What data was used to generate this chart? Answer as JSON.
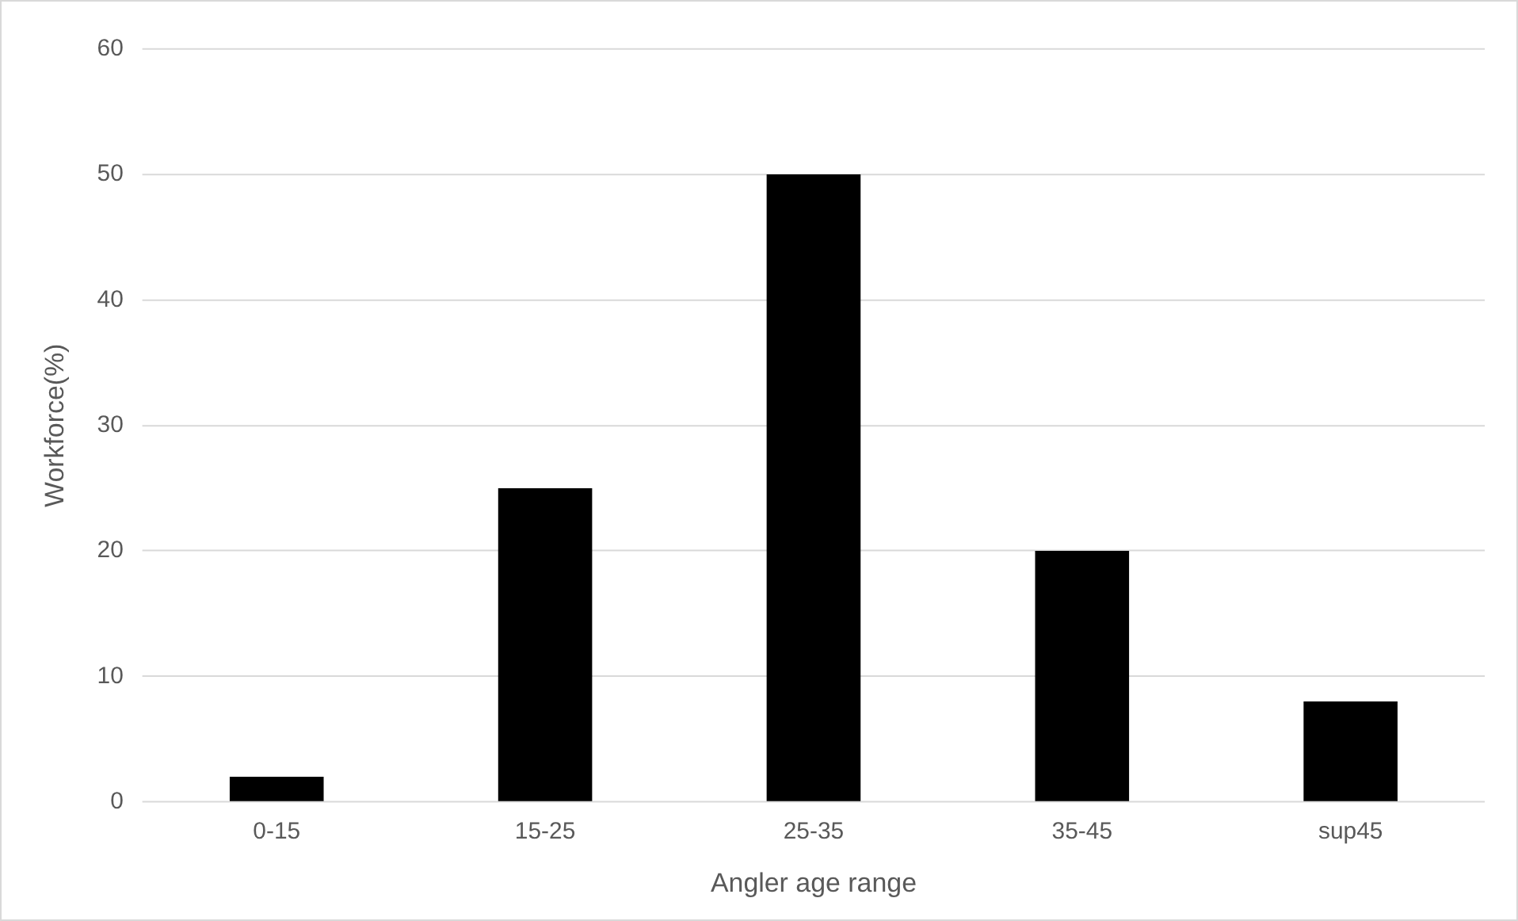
{
  "chart_data": {
    "type": "bar",
    "xlabel": "Angler age range",
    "ylabel": "Workforce(%)",
    "categories": [
      "0-15",
      "15-25",
      "25-35",
      "35-45",
      "sup45"
    ],
    "values": [
      2,
      25,
      50,
      20,
      8
    ],
    "color": "#000000",
    "ylim": [
      0,
      60
    ],
    "yticks": [
      0,
      10,
      20,
      30,
      40,
      50,
      60
    ],
    "grid": "y",
    "legend": false
  }
}
